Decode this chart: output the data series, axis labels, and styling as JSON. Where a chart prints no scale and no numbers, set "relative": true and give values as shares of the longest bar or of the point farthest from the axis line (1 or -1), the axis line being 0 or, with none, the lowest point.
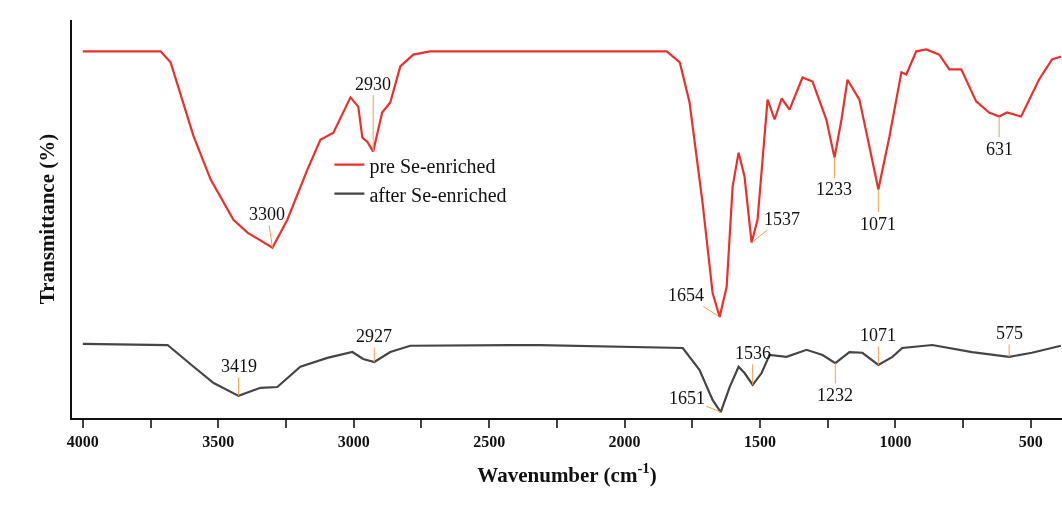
{
  "chart_data": {
    "type": "line",
    "relative": true,
    "xlabel": "Wavenumber (cm$^{-1}$)",
    "ylabel": "Transmittance (%)",
    "xlim": [
      4040,
      385
    ],
    "xticks": [
      4000,
      {
        "value": 3750,
        "label": null
      },
      3500,
      {
        "value": 3250,
        "label": null
      },
      3000,
      {
        "value": 2750,
        "label": null
      },
      2500,
      {
        "value": 2250,
        "label": null
      },
      2000,
      {
        "value": 1750,
        "label": null
      },
      1500,
      {
        "value": 1250,
        "label": null
      },
      1000,
      {
        "value": 750,
        "label": null
      },
      500
    ],
    "tick_labels": "x",
    "grid": false,
    "legend": "left",
    "marker": "none",
    "line_style": "solid",
    "series": [
      {
        "name": "pre Se-enriched",
        "color": "#e8312f",
        "x": [
          4000,
          3713,
          3676,
          3591,
          3528,
          3444,
          3392,
          3300,
          3245,
          3171,
          3123,
          3075,
          3012,
          2983,
          2968,
          2950,
          2928,
          2895,
          2865,
          2828,
          2780,
          2718,
          1844,
          1796,
          1760,
          1712,
          1675,
          1649,
          1623,
          1601,
          1579,
          1557,
          1531,
          1509,
          1472,
          1446,
          1420,
          1391,
          1343,
          1306,
          1255,
          1225,
          1199,
          1177,
          1133,
          1096,
          1063,
          1022,
          978,
          960,
          923,
          886,
          838,
          801,
          757,
          702,
          654,
          617,
          588,
          536,
          470,
          422,
          389
        ],
        "values": [
          0.995,
          0.995,
          0.965,
          0.764,
          0.647,
          0.538,
          0.503,
          0.462,
          0.538,
          0.674,
          0.755,
          0.774,
          0.87,
          0.845,
          0.761,
          0.75,
          0.723,
          0.829,
          0.856,
          0.954,
          0.986,
          0.995,
          0.995,
          0.965,
          0.856,
          0.584,
          0.34,
          0.274,
          0.356,
          0.628,
          0.72,
          0.655,
          0.476,
          0.538,
          0.864,
          0.81,
          0.867,
          0.837,
          0.924,
          0.913,
          0.81,
          0.707,
          0.81,
          0.918,
          0.864,
          0.736,
          0.62,
          0.764,
          0.938,
          0.932,
          0.995,
          1.0,
          0.986,
          0.946,
          0.946,
          0.859,
          0.829,
          0.818,
          0.829,
          0.818,
          0.918,
          0.973,
          0.981
        ]
      },
      {
        "name": "after Se-enriched",
        "color": "#454545",
        "x": [
          4000,
          3687,
          3591,
          3517,
          3425,
          3344,
          3282,
          3197,
          3097,
          3005,
          2965,
          2924,
          2865,
          2791,
          2312,
          1785,
          1723,
          1675,
          1645,
          1612,
          1579,
          1557,
          1527,
          1494,
          1465,
          1402,
          1328,
          1269,
          1222,
          1170,
          1122,
          1063,
          1011,
          975,
          864,
          717,
          580,
          496,
          389
        ],
        "values": [
          0.201,
          0.198,
          0.139,
          0.095,
          0.06,
          0.082,
          0.084,
          0.139,
          0.163,
          0.179,
          0.16,
          0.152,
          0.179,
          0.196,
          0.198,
          0.19,
          0.13,
          0.049,
          0.016,
          0.084,
          0.139,
          0.122,
          0.09,
          0.122,
          0.171,
          0.166,
          0.185,
          0.171,
          0.149,
          0.179,
          0.177,
          0.144,
          0.166,
          0.19,
          0.198,
          0.179,
          0.166,
          0.177,
          0.196
        ]
      }
    ],
    "annotations": [
      {
        "text": "3300",
        "x": 3300,
        "y": 0.462
      },
      {
        "text": "2930",
        "x": 2928,
        "y": 0.723
      },
      {
        "text": "1654",
        "x": 1649,
        "y": 0.274
      },
      {
        "text": "1537",
        "x": 1531,
        "y": 0.476
      },
      {
        "text": "1233",
        "x": 1225,
        "y": 0.707
      },
      {
        "text": "1071",
        "x": 1063,
        "y": 0.62
      },
      {
        "text": "631",
        "x": 617,
        "y": 0.818
      },
      {
        "text": "3419",
        "x": 3425,
        "y": 0.06
      },
      {
        "text": "2927",
        "x": 2924,
        "y": 0.152
      },
      {
        "text": "1651",
        "x": 1645,
        "y": 0.016
      },
      {
        "text": "1536",
        "x": 1527,
        "y": 0.09
      },
      {
        "text": "1232",
        "x": 1222,
        "y": 0.149
      },
      {
        "text": "1071",
        "x": 1063,
        "y": 0.144
      },
      {
        "text": "575",
        "x": 580,
        "y": 0.166
      }
    ]
  }
}
